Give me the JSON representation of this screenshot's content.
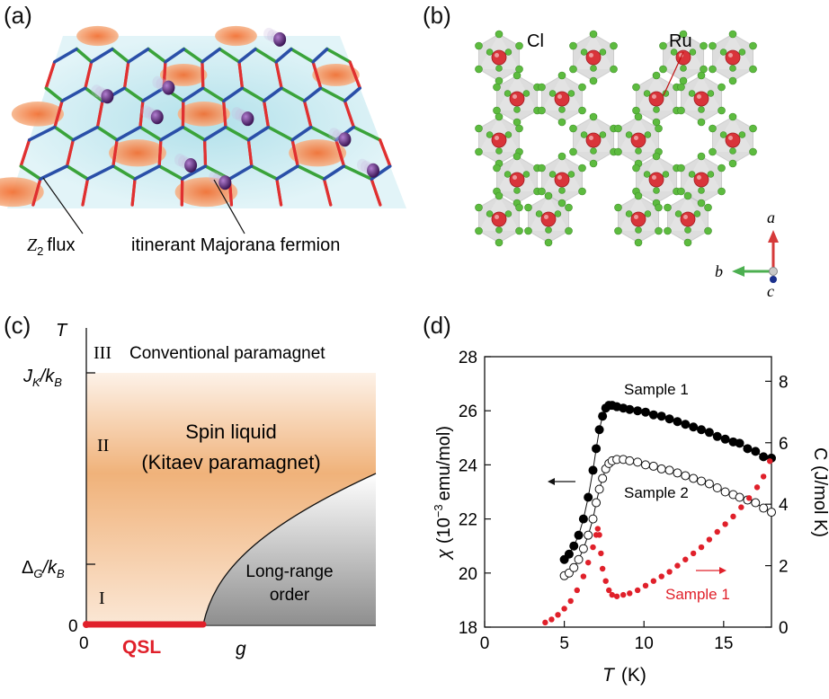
{
  "panels": {
    "a": {
      "label": "(a)",
      "z2_flux_label": "flux",
      "z2_symbol": "Z",
      "z2_sub": "2",
      "majorana_label": "itinerant Majorana fermion",
      "colors": {
        "flux": "#f47a3a",
        "bg": "#bfe6ee",
        "bond_x": "#e03030",
        "bond_y": "#3aa33a",
        "bond_z": "#2a4fa8",
        "fermion": "#5b2a7c"
      }
    },
    "b": {
      "label": "(b)",
      "cl_label": "Cl",
      "ru_label": "Ru",
      "axis_a": "a",
      "axis_b": "b",
      "axis_c": "c",
      "colors": {
        "ru": "#d9343a",
        "cl": "#5dbb3f",
        "octahedron": "#cfcfcf"
      }
    },
    "c": {
      "label": "(c)",
      "y_axis_label": "T",
      "x_axis_label": "g",
      "tick_jk": "J",
      "tick_jk_sub": "K",
      "tick_delta": "Δ",
      "tick_delta_sub": "G",
      "tick_kb": "/k",
      "tick_kb_sub": "B",
      "tick_zero_y": "0",
      "tick_zero_x": "0",
      "region_III_numeral": "III",
      "region_III_text": "Conventional paramagnet",
      "region_II_numeral": "II",
      "region_II_line1": "Spin liquid",
      "region_II_line2": "(Kitaev paramagnet)",
      "region_I_numeral": "I",
      "region_lro_line1": "Long-range",
      "region_lro_line2": "order",
      "qsl_label": "QSL",
      "colors": {
        "spin_liquid": "#f0b27a",
        "lro": "#9a9a9a",
        "qsl": "#e0202a"
      }
    },
    "d": {
      "label": "(d)",
      "sample1_label": "Sample 1",
      "sample2_label": "Sample 2",
      "sample1_c_label": "Sample 1",
      "colors": {
        "sample1": "#000000",
        "sample2": "#ffffff",
        "heat": "#e0202a"
      }
    }
  },
  "chart_data": {
    "type": "scatter",
    "xlabel": "T",
    "xlabel_unit": "(K)",
    "ylabel_left_parts": [
      "χ",
      "(10",
      "−3",
      "emu/mol)"
    ],
    "ylabel_right": "C (J/mol K)",
    "xlim": [
      0,
      18
    ],
    "ylim_left": [
      18,
      28
    ],
    "ylim_right": [
      0,
      8.8
    ],
    "x_ticks": [
      "0",
      "5",
      "10",
      "15"
    ],
    "y_left_ticks": [
      "18",
      "20",
      "22",
      "24",
      "26",
      "28"
    ],
    "y_right_ticks": [
      "0",
      "2",
      "4",
      "6",
      "8"
    ],
    "series": [
      {
        "name": "Sample 1",
        "axis": "left",
        "marker": "filled-circle",
        "x": [
          5.0,
          5.3,
          5.6,
          5.9,
          6.2,
          6.5,
          6.8,
          7.0,
          7.2,
          7.4,
          7.6,
          7.8,
          8.0,
          8.3,
          8.7,
          9.1,
          9.6,
          10.1,
          10.6,
          11.1,
          11.6,
          12.1,
          12.6,
          13.1,
          13.6,
          14.1,
          14.6,
          15.1,
          15.6,
          16.0,
          16.5,
          17.0,
          17.5,
          18.0
        ],
        "y": [
          20.5,
          20.7,
          21.0,
          21.4,
          22.0,
          22.8,
          23.8,
          24.6,
          25.3,
          25.8,
          26.1,
          26.2,
          26.2,
          26.15,
          26.1,
          26.05,
          26.0,
          25.95,
          25.85,
          25.8,
          25.7,
          25.6,
          25.5,
          25.4,
          25.3,
          25.2,
          25.05,
          24.95,
          24.85,
          24.8,
          24.6,
          24.5,
          24.3,
          24.25
        ]
      },
      {
        "name": "Sample 2",
        "axis": "left",
        "marker": "open-circle",
        "x": [
          5.0,
          5.3,
          5.6,
          5.9,
          6.2,
          6.5,
          6.8,
          7.0,
          7.2,
          7.4,
          7.6,
          7.8,
          8.0,
          8.3,
          8.7,
          9.1,
          9.6,
          10.1,
          10.6,
          11.1,
          11.6,
          12.1,
          12.6,
          13.1,
          13.6,
          14.1,
          14.6,
          15.1,
          15.6,
          16.0,
          16.5,
          17.0,
          17.5,
          18.0
        ],
        "y": [
          19.9,
          20.0,
          20.2,
          20.5,
          20.9,
          21.4,
          22.0,
          22.6,
          23.1,
          23.5,
          23.85,
          24.05,
          24.15,
          24.2,
          24.2,
          24.15,
          24.1,
          24.0,
          23.95,
          23.85,
          23.8,
          23.7,
          23.6,
          23.5,
          23.4,
          23.3,
          23.15,
          23.0,
          22.9,
          22.8,
          22.7,
          22.6,
          22.4,
          22.25
        ]
      },
      {
        "name": "Sample 1",
        "axis": "right",
        "marker": "small-red-dot",
        "x": [
          3.8,
          4.2,
          4.6,
          5.0,
          5.4,
          5.8,
          6.2,
          6.5,
          6.8,
          7.0,
          7.1,
          7.2,
          7.3,
          7.4,
          7.6,
          7.8,
          8.0,
          8.3,
          8.7,
          9.1,
          9.6,
          10.1,
          10.6,
          11.1,
          11.6,
          12.1,
          12.6,
          13.1,
          13.6,
          14.1,
          14.6,
          15.1,
          15.6,
          16.1,
          16.6,
          17.1,
          17.5,
          17.9
        ],
        "y": [
          0.15,
          0.25,
          0.4,
          0.6,
          0.85,
          1.2,
          1.65,
          2.1,
          2.6,
          3.0,
          3.2,
          3.0,
          2.4,
          1.9,
          1.5,
          1.2,
          1.05,
          1.0,
          1.05,
          1.1,
          1.2,
          1.35,
          1.5,
          1.65,
          1.8,
          2.0,
          2.2,
          2.4,
          2.6,
          2.85,
          3.1,
          3.35,
          3.6,
          3.9,
          4.2,
          4.55,
          4.9,
          5.4
        ]
      }
    ]
  }
}
